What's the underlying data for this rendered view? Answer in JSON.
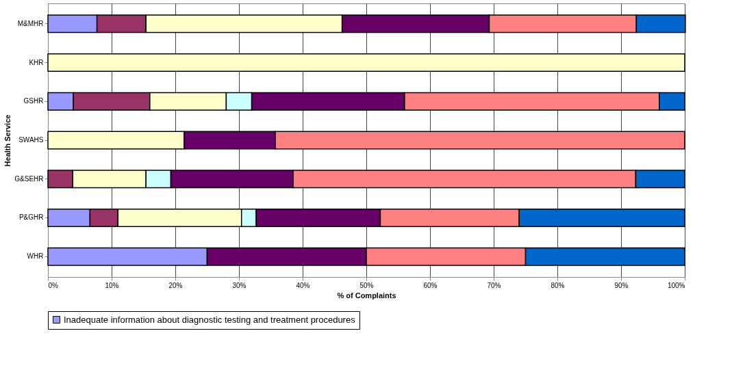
{
  "chart_data": {
    "type": "bar",
    "orientation": "horizontal",
    "stacked": true,
    "xlabel": "% of Complaints",
    "ylabel": "Health Service",
    "categories": [
      "M&MHR",
      "KHR",
      "GSHR",
      "SWAHS",
      "G&SEHR",
      "P&GHR",
      "WHR"
    ],
    "series": [
      {
        "name": "Inadequate information about diagnostic testing and treatment procedures",
        "color": "#9999ff",
        "values": [
          7.7,
          null,
          4,
          null,
          null,
          6.6,
          25
        ]
      },
      {
        "color": "#993366",
        "values": [
          7.7,
          null,
          12,
          null,
          3.9,
          4.4,
          null
        ]
      },
      {
        "color": "#ffffcc",
        "values": [
          30.8,
          100,
          12,
          21.4,
          11.5,
          19.4,
          null
        ]
      },
      {
        "color": "#ccffff",
        "values": [
          null,
          null,
          4,
          null,
          3.9,
          2.3,
          null
        ]
      },
      {
        "color": "#660066",
        "values": [
          23.1,
          null,
          24,
          14.3,
          19.2,
          19.5,
          25
        ]
      },
      {
        "color": "#ff8080",
        "values": [
          23.1,
          null,
          40,
          64.3,
          53.8,
          21.8,
          25
        ]
      },
      {
        "color": "#0066cc",
        "values": [
          7.7,
          null,
          4,
          null,
          7.7,
          26,
          25
        ]
      }
    ],
    "xlim": [
      0,
      100
    ],
    "xticks": [
      {
        "value": 0,
        "label": "0%"
      },
      {
        "value": 10,
        "label": "10%"
      },
      {
        "value": 20,
        "label": "20%"
      },
      {
        "value": 30,
        "label": "30%"
      },
      {
        "value": 40,
        "label": "40%"
      },
      {
        "value": 50,
        "label": "50%"
      },
      {
        "value": 60,
        "label": "60%"
      },
      {
        "value": 70,
        "label": "70%"
      },
      {
        "value": 80,
        "label": "80%"
      },
      {
        "value": 90,
        "label": "90%"
      },
      {
        "value": 100,
        "label": "100%"
      }
    ],
    "grid": "x",
    "legend": "bottom"
  }
}
